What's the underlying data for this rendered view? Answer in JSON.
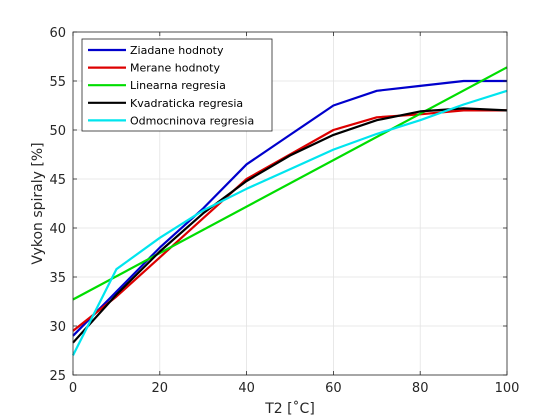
{
  "chart_data": {
    "type": "line",
    "xlabel": "T2 [˚C]",
    "ylabel": "Vykon spiraly [%]",
    "xlim": [
      0,
      100
    ],
    "ylim": [
      25,
      60
    ],
    "xticks": [
      0,
      20,
      40,
      60,
      80,
      100
    ],
    "yticks": [
      25,
      30,
      35,
      40,
      45,
      50,
      55,
      60
    ],
    "grid": true,
    "legend_position": "top-left",
    "series": [
      {
        "name": "Ziadane hodnoty",
        "color": "#0000cc",
        "x": [
          0,
          10,
          20,
          30,
          40,
          50,
          60,
          70,
          80,
          90,
          100
        ],
        "y": [
          29.0,
          33.5,
          38.0,
          42.0,
          46.5,
          49.5,
          52.5,
          54.0,
          54.5,
          55.0,
          55.0
        ]
      },
      {
        "name": "Merane hodnoty",
        "color": "#dd0000",
        "x": [
          0,
          10,
          20,
          30,
          40,
          50,
          60,
          70,
          80,
          90,
          100
        ],
        "y": [
          29.5,
          33.0,
          37.0,
          41.0,
          45.0,
          47.5,
          50.0,
          51.3,
          51.6,
          52.0,
          52.0
        ]
      },
      {
        "name": "Linearna regresia",
        "color": "#00dd00",
        "x": [
          0,
          100
        ],
        "y": [
          32.7,
          56.4
        ]
      },
      {
        "name": "Kvadraticka regresia",
        "color": "#000000",
        "x": [
          0,
          10,
          20,
          30,
          40,
          50,
          60,
          70,
          80,
          90,
          100
        ],
        "y": [
          28.3,
          33.2,
          37.6,
          41.5,
          44.8,
          47.4,
          49.5,
          51.0,
          51.9,
          52.2,
          52.0
        ]
      },
      {
        "name": "Odmocninova regresia",
        "color": "#00e5ee",
        "x": [
          0,
          10,
          20,
          30,
          40,
          50,
          60,
          70,
          80,
          90,
          100
        ],
        "y": [
          27.0,
          35.8,
          39.0,
          41.8,
          44.0,
          46.0,
          48.0,
          49.6,
          51.0,
          52.6,
          54.0
        ]
      }
    ]
  }
}
